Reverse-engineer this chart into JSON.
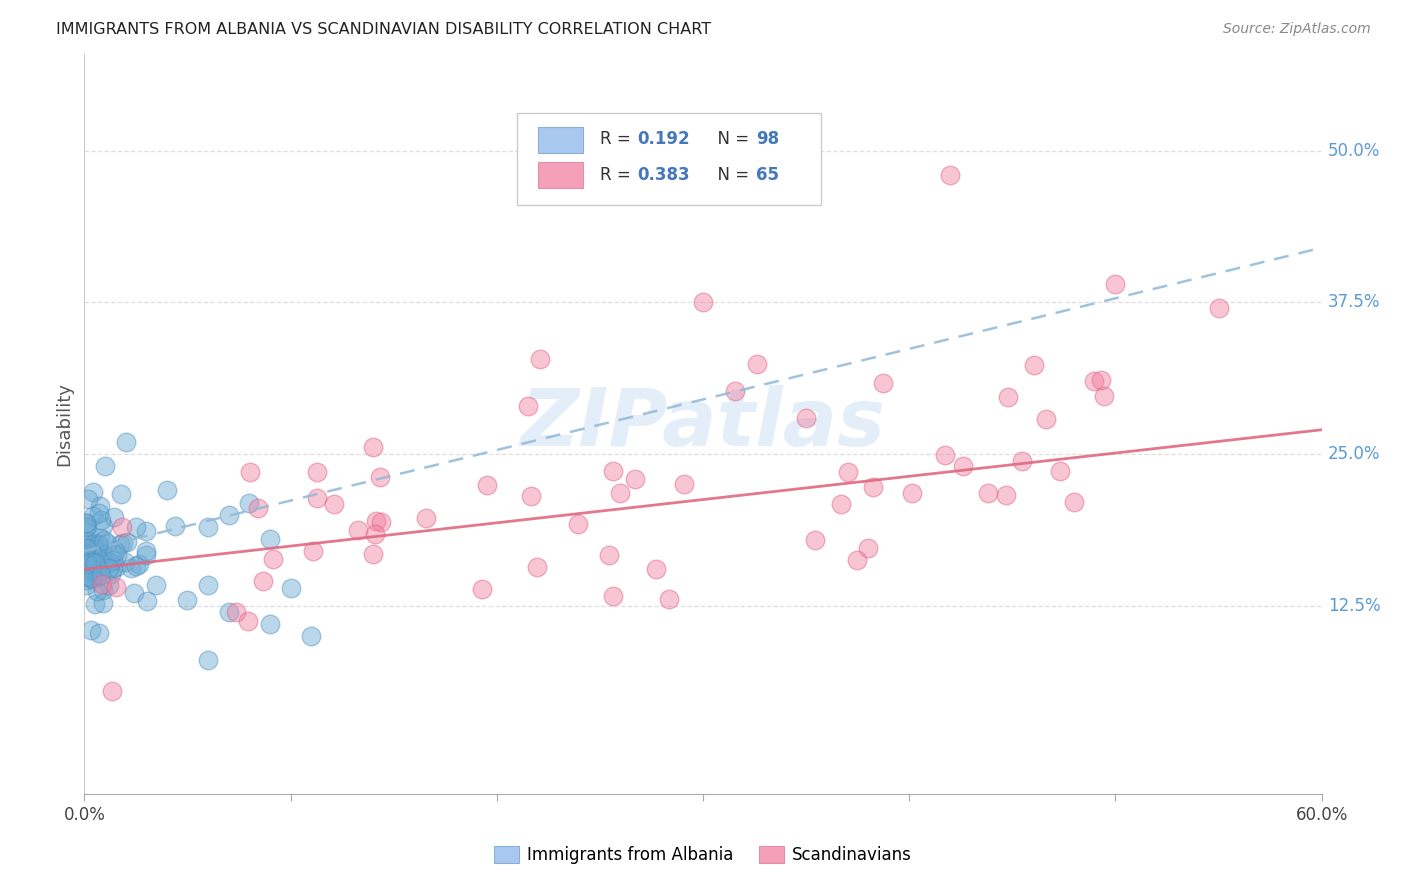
{
  "title": "IMMIGRANTS FROM ALBANIA VS SCANDINAVIAN DISABILITY CORRELATION CHART",
  "source": "Source: ZipAtlas.com",
  "ylabel": "Disability",
  "right_yticks": [
    0.125,
    0.25,
    0.375,
    0.5
  ],
  "right_yticklabels": [
    "12.5%",
    "25.0%",
    "37.5%",
    "50.0%"
  ],
  "xlim": [
    0.0,
    0.6
  ],
  "ylim": [
    -0.03,
    0.58
  ],
  "albania_color": "#6aaad4",
  "albania_edge": "#5090c0",
  "scandinavian_color": "#f080a0",
  "scandinavian_edge": "#e06080",
  "albania_R": 0.192,
  "albania_N": 98,
  "scandinavian_R": 0.383,
  "scandinavian_N": 65,
  "trend_blue_color": "#90b8d8",
  "trend_pink_color": "#e06880",
  "watermark_color": "#cde0f5",
  "grid_color": "#d8d8d8",
  "legend_box_color": "#aec6f0",
  "legend_pink_color": "#f4b0c0",
  "legend_text_color": "#4477bb",
  "legend_entries": [
    {
      "label": "Immigrants from Albania",
      "color": "#a8c8f0"
    },
    {
      "label": "Scandinavians",
      "color": "#f4a0b8"
    }
  ]
}
